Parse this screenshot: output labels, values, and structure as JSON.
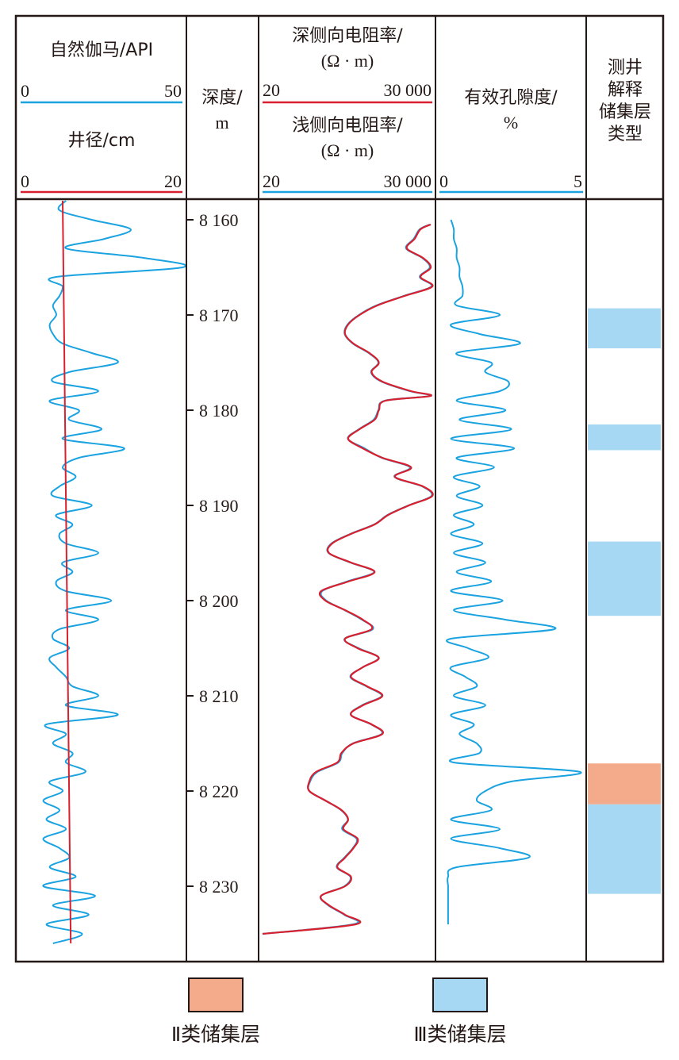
{
  "colors": {
    "gamma": "#1aa3e0",
    "caliper": "#d9202f",
    "deep_res": "#d9202f",
    "shallow_res": "#1aa3e0",
    "porosity": "#1aa3e0",
    "type2": "#f3ab8b",
    "type3": "#a6d8f3",
    "frame": "#231815"
  },
  "headers": {
    "gamma": {
      "label": "自然伽马/API",
      "min": "0",
      "max": "50"
    },
    "caliper": {
      "label": "井径/cm",
      "min": "0",
      "max": "20"
    },
    "depth": {
      "line1": "深度/",
      "line2": "m"
    },
    "deep_res": {
      "line1": "深侧向电阻率/",
      "line2": "(Ω · m)",
      "min": "20",
      "max": "30 000"
    },
    "shallow_res": {
      "line1": "浅侧向电阻率/",
      "line2": "(Ω · m)",
      "min": "20",
      "max": "30 000"
    },
    "porosity": {
      "line1": "有效孔隙度/",
      "line2": "%",
      "min": "0",
      "max": "5"
    },
    "interp": {
      "lines": [
        "测井",
        "解释",
        "储集层",
        "类型"
      ]
    }
  },
  "legend": {
    "type2": "Ⅱ类储集层",
    "type3": "Ⅲ类储集层"
  },
  "chart_data": {
    "type": "line",
    "depth_axis": {
      "label": "深度/m",
      "range": [
        8158,
        8236
      ],
      "ticks": [
        8160,
        8170,
        8180,
        8190,
        8200,
        8210,
        8220,
        8230
      ],
      "tick_labels": [
        "8 160",
        "8 170",
        "8 180",
        "8 190",
        "8 200",
        "8 210",
        "8 220",
        "8 230"
      ]
    },
    "tracks": [
      {
        "label": "自然伽马/API",
        "range": [
          0,
          50
        ],
        "depth": [
          8158,
          8159,
          8160,
          8161,
          8162,
          8163,
          8164,
          8165,
          8166,
          8167,
          8168,
          8169,
          8170,
          8171,
          8172,
          8173,
          8174,
          8175,
          8176,
          8177,
          8178,
          8179,
          8180,
          8181,
          8182,
          8183,
          8184,
          8185,
          8186,
          8187,
          8188,
          8189,
          8190,
          8191,
          8192,
          8193,
          8194,
          8195,
          8196,
          8197,
          8198,
          8199,
          8200,
          8201,
          8202,
          8203,
          8204,
          8205,
          8206,
          8207,
          8208,
          8209,
          8210,
          8211,
          8212,
          8213,
          8214,
          8215,
          8216,
          8217,
          8218,
          8219,
          8220,
          8221,
          8222,
          8223,
          8224,
          8225,
          8226,
          8227,
          8228,
          8229,
          8230,
          8231,
          8232,
          8233,
          8234,
          8235,
          8236
        ],
        "values": [
          14,
          12,
          22,
          34,
          26,
          14,
          38,
          50,
          11,
          13,
          12,
          10,
          11,
          9,
          10,
          13,
          22,
          30,
          15,
          10,
          24,
          9,
          18,
          15,
          25,
          13,
          32,
          18,
          13,
          17,
          12,
          10,
          22,
          11,
          16,
          12,
          14,
          24,
          13,
          16,
          11,
          14,
          28,
          14,
          24,
          12,
          10,
          15,
          9,
          11,
          14,
          16,
          24,
          14,
          30,
          8,
          14,
          10,
          16,
          14,
          20,
          9,
          13,
          7,
          12,
          8,
          14,
          7,
          12,
          15,
          9,
          17,
          7,
          23,
          10,
          21,
          8,
          19,
          10
        ],
        "series": [
          {
            "name": "自然伽马/API"
          }
        ]
      },
      {
        "label": "井径/cm",
        "range": [
          0,
          20
        ],
        "depth": [
          8158,
          8236
        ],
        "values": [
          5.2,
          6.2
        ],
        "series": [
          {
            "name": "井径/cm"
          }
        ]
      },
      {
        "label": "深侧向电阻率/(Ω · m)",
        "scale": "log",
        "range": [
          20,
          30000
        ],
        "depth": [
          8160.5,
          8161,
          8162,
          8163,
          8164,
          8165,
          8166,
          8167,
          8168,
          8169,
          8170,
          8171,
          8172,
          8173,
          8174,
          8175,
          8176,
          8177,
          8178,
          8178.5,
          8179,
          8180,
          8181,
          8182,
          8183,
          8184,
          8185,
          8186,
          8187,
          8188,
          8189,
          8190,
          8191,
          8192,
          8193,
          8194,
          8195,
          8196,
          8197,
          8198,
          8199,
          8200,
          8201,
          8202,
          8203,
          8204,
          8205,
          8206,
          8207,
          8208,
          8209,
          8210,
          8211,
          8212,
          8213,
          8214,
          8215,
          8216,
          8217,
          8218,
          8219,
          8220,
          8221,
          8222,
          8223,
          8224,
          8225,
          8226,
          8227,
          8228,
          8229,
          8230,
          8231,
          8232,
          8233,
          8234,
          8235
        ],
        "values": [
          28000,
          18000,
          14000,
          10000,
          20000,
          28000,
          18000,
          30000,
          9000,
          2800,
          1300,
          800,
          700,
          1000,
          2000,
          3000,
          2200,
          3500,
          12000,
          28000,
          4000,
          3000,
          2500,
          1300,
          800,
          1500,
          3500,
          12000,
          6000,
          20000,
          30000,
          11000,
          4500,
          2500,
          900,
          400,
          350,
          900,
          2500,
          800,
          250,
          300,
          700,
          1500,
          2200,
          700,
          1200,
          3000,
          1500,
          900,
          1800,
          3500,
          1500,
          900,
          2200,
          3500,
          1000,
          600,
          500,
          200,
          150,
          150,
          300,
          600,
          800,
          650,
          1200,
          1000,
          700,
          500,
          900,
          700,
          250,
          350,
          700,
          1100,
          20
        ],
        "series": [
          {
            "name": "深侧向电阻率/(Ω · m)"
          }
        ]
      },
      {
        "label": "浅侧向电阻率/(Ω · m)",
        "scale": "log",
        "range": [
          20,
          30000
        ],
        "depth": [
          8160.5,
          8161,
          8162,
          8163,
          8164,
          8165,
          8166,
          8167,
          8168,
          8169,
          8170,
          8171,
          8172,
          8173,
          8174,
          8175,
          8176,
          8177,
          8178,
          8178.5,
          8179,
          8180,
          8181,
          8182,
          8183,
          8184,
          8185,
          8186,
          8187,
          8188,
          8189,
          8190,
          8191,
          8192,
          8193,
          8194,
          8195,
          8196,
          8197,
          8198,
          8199,
          8200,
          8201,
          8202,
          8203,
          8204,
          8205,
          8206,
          8207,
          8208,
          8209,
          8210,
          8211,
          8212,
          8213,
          8214,
          8215,
          8216,
          8217,
          8218,
          8219,
          8220,
          8221,
          8222,
          8223,
          8224,
          8225,
          8226,
          8227,
          8228,
          8229,
          8230,
          8231,
          8232,
          8233,
          8234,
          8235
        ],
        "values": [
          27000,
          17500,
          13500,
          9700,
          19500,
          27000,
          17500,
          29000,
          8800,
          2700,
          1270,
          780,
          690,
          980,
          1950,
          2950,
          2150,
          3400,
          11500,
          27000,
          3900,
          2950,
          2400,
          1270,
          790,
          1600,
          3400,
          11500,
          5900,
          19500,
          29000,
          10800,
          4400,
          2450,
          880,
          390,
          345,
          880,
          2450,
          760,
          260,
          310,
          690,
          1450,
          2300,
          690,
          1250,
          2950,
          1500,
          880,
          1750,
          3400,
          1450,
          900,
          2150,
          3400,
          980,
          620,
          520,
          210,
          155,
          150,
          300,
          590,
          790,
          620,
          1150,
          980,
          680,
          490,
          880,
          680,
          250,
          340,
          680,
          1000,
          20
        ],
        "series": [
          {
            "name": "浅侧向电阻率/(Ω · m)"
          }
        ]
      },
      {
        "label": "有效孔隙度/%",
        "range": [
          0,
          5
        ],
        "depth": [
          8160,
          8161,
          8162,
          8163,
          8164,
          8165,
          8166,
          8167,
          8168,
          8169,
          8170,
          8171,
          8172,
          8173,
          8174,
          8175,
          8176,
          8177,
          8178,
          8179,
          8180,
          8181,
          8182,
          8183,
          8184,
          8185,
          8186,
          8187,
          8188,
          8189,
          8190,
          8191,
          8192,
          8193,
          8194,
          8195,
          8196,
          8197,
          8198,
          8199,
          8200,
          8201,
          8202,
          8203,
          8204,
          8205,
          8206,
          8207,
          8208,
          8209,
          8210,
          8211,
          8212,
          8213,
          8214,
          8215,
          8216,
          8217,
          8218,
          8219,
          8220,
          8221,
          8222,
          8223,
          8224,
          8225,
          8226,
          8227,
          8228,
          8229,
          8230,
          8231,
          8232,
          8233,
          8234
        ],
        "values": [
          0.4,
          0.5,
          0.5,
          0.6,
          0.6,
          0.7,
          0.7,
          0.8,
          0.8,
          0.6,
          2.1,
          0.4,
          1.4,
          2.8,
          0.6,
          1.8,
          1.6,
          2.4,
          2.1,
          0.6,
          2.3,
          0.7,
          2.5,
          0.4,
          2.6,
          0.6,
          1.9,
          0.5,
          1.4,
          0.6,
          1.5,
          0.5,
          1.2,
          0.4,
          1.5,
          0.5,
          1.6,
          0.6,
          1.8,
          0.4,
          2.2,
          0.5,
          2.3,
          4.0,
          0.4,
          1.0,
          1.7,
          0.4,
          0.9,
          1.3,
          0.5,
          1.6,
          0.4,
          1.2,
          0.7,
          1.3,
          1.4,
          0.5,
          4.9,
          2.5,
          1.6,
          1.3,
          1.8,
          0.4,
          2.1,
          0.4,
          2.1,
          3.1,
          0.6,
          0.3,
          0.3,
          0.3,
          0.3,
          0.3,
          0.3
        ],
        "series": [
          {
            "name": "有效孔隙度/%"
          }
        ]
      }
    ],
    "interpretation": [
      {
        "type": "Ⅲ类储集层",
        "top": 8169.3,
        "bottom": 8173.5
      },
      {
        "type": "Ⅲ类储集层",
        "top": 8181.5,
        "bottom": 8184.2
      },
      {
        "type": "Ⅲ类储集层",
        "top": 8193.8,
        "bottom": 8201.6
      },
      {
        "type": "Ⅱ类储集层",
        "top": 8217.1,
        "bottom": 8221.4
      },
      {
        "type": "Ⅲ类储集层",
        "top": 8221.4,
        "bottom": 8230.8
      }
    ]
  }
}
